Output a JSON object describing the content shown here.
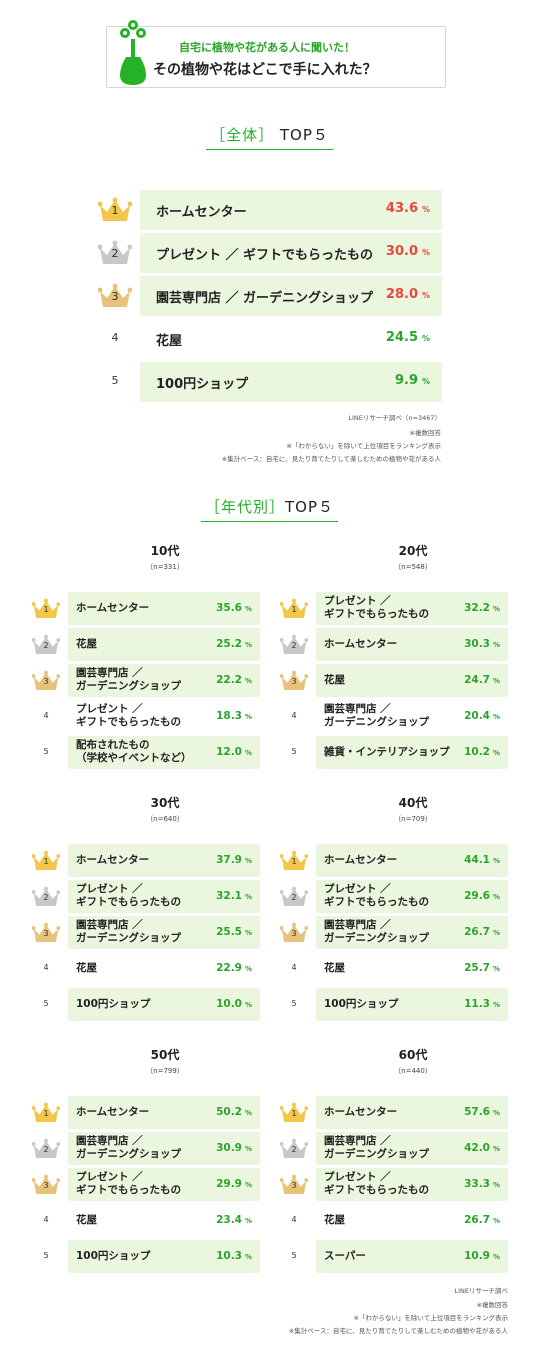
{
  "header": {
    "line1": "自宅に植物や花がある人に聞いた！",
    "line2": "その植物や花はどこで手に入れた？"
  },
  "overall": {
    "title_pre": "［全体］",
    "title_post": "TOP５",
    "rows": [
      {
        "rank": "1",
        "label": "ホームセンター",
        "value": "43.6",
        "unit": "%"
      },
      {
        "rank": "2",
        "label": "プレゼント ／ ギフトでもらったもの",
        "value": "30.0",
        "unit": "%"
      },
      {
        "rank": "3",
        "label": "園芸専門店 ／ ガーデニングショップ",
        "value": "28.0",
        "unit": "%"
      },
      {
        "rank": "4",
        "label": "花屋",
        "value": "24.5",
        "unit": "%"
      },
      {
        "rank": "5",
        "label": "100円ショップ",
        "value": "9.9",
        "unit": "%"
      }
    ],
    "notes": [
      "LINEリサーチ調べ（n=3467）",
      "※複数回答",
      "※「わからない」を除いて上位項目をランキング表示",
      "※集計ベース：自宅に、見たり育てたりして楽しむための植物や花がある人"
    ]
  },
  "by_age": {
    "title_pre": "［年代別］",
    "title_post": "TOP５",
    "groups": [
      {
        "age": "10代",
        "n": "（n=331）",
        "rows": [
          {
            "rank": "1",
            "lines": [
              "ホームセンター"
            ],
            "value": "35.6",
            "unit": "%"
          },
          {
            "rank": "2",
            "lines": [
              "花屋"
            ],
            "value": "25.2",
            "unit": "%"
          },
          {
            "rank": "3",
            "lines": [
              "園芸専門店 ／",
              "ガーデニングショップ"
            ],
            "value": "22.2",
            "unit": "%"
          },
          {
            "rank": "4",
            "lines": [
              "プレゼント ／",
              "ギフトでもらったもの"
            ],
            "value": "18.3",
            "unit": "%"
          },
          {
            "rank": "5",
            "lines": [
              "配布されたもの",
              "（学校やイベントなど）"
            ],
            "value": "12.0",
            "unit": "%"
          }
        ]
      },
      {
        "age": "20代",
        "n": "（n=548）",
        "rows": [
          {
            "rank": "1",
            "lines": [
              "プレゼント ／",
              "ギフトでもらったもの"
            ],
            "value": "32.2",
            "unit": "%"
          },
          {
            "rank": "2",
            "lines": [
              "ホームセンター"
            ],
            "value": "30.3",
            "unit": "%"
          },
          {
            "rank": "3",
            "lines": [
              "花屋"
            ],
            "value": "24.7",
            "unit": "%"
          },
          {
            "rank": "4",
            "lines": [
              "園芸専門店 ／",
              "ガーデニングショップ"
            ],
            "value": "20.4",
            "unit": "%"
          },
          {
            "rank": "5",
            "lines": [
              "雑貨・インテリアショップ"
            ],
            "value": "10.2",
            "unit": "%"
          }
        ]
      },
      {
        "age": "30代",
        "n": "（n=640）",
        "rows": [
          {
            "rank": "1",
            "lines": [
              "ホームセンター"
            ],
            "value": "37.9",
            "unit": "%"
          },
          {
            "rank": "2",
            "lines": [
              "プレゼント ／",
              "ギフトでもらったもの"
            ],
            "value": "32.1",
            "unit": "%"
          },
          {
            "rank": "3",
            "lines": [
              "園芸専門店 ／",
              "ガーデニングショップ"
            ],
            "value": "25.5",
            "unit": "%"
          },
          {
            "rank": "4",
            "lines": [
              "花屋"
            ],
            "value": "22.9",
            "unit": "%"
          },
          {
            "rank": "5",
            "lines": [
              "100円ショップ"
            ],
            "value": "10.0",
            "unit": "%"
          }
        ]
      },
      {
        "age": "40代",
        "n": "（n=709）",
        "rows": [
          {
            "rank": "1",
            "lines": [
              "ホームセンター"
            ],
            "value": "44.1",
            "unit": "%"
          },
          {
            "rank": "2",
            "lines": [
              "プレゼント ／",
              "ギフトでもらったもの"
            ],
            "value": "29.6",
            "unit": "%"
          },
          {
            "rank": "3",
            "lines": [
              "園芸専門店 ／",
              "ガーデニングショップ"
            ],
            "value": "26.7",
            "unit": "%"
          },
          {
            "rank": "4",
            "lines": [
              "花屋"
            ],
            "value": "25.7",
            "unit": "%"
          },
          {
            "rank": "5",
            "lines": [
              "100円ショップ"
            ],
            "value": "11.3",
            "unit": "%"
          }
        ]
      },
      {
        "age": "50代",
        "n": "（n=799）",
        "rows": [
          {
            "rank": "1",
            "lines": [
              "ホームセンター"
            ],
            "value": "50.2",
            "unit": "%"
          },
          {
            "rank": "2",
            "lines": [
              "園芸専門店 ／",
              "ガーデニングショップ"
            ],
            "value": "30.9",
            "unit": "%"
          },
          {
            "rank": "3",
            "lines": [
              "プレゼント ／",
              "ギフトでもらったもの"
            ],
            "value": "29.9",
            "unit": "%"
          },
          {
            "rank": "4",
            "lines": [
              "花屋"
            ],
            "value": "23.4",
            "unit": "%"
          },
          {
            "rank": "5",
            "lines": [
              "100円ショップ"
            ],
            "value": "10.3",
            "unit": "%"
          }
        ]
      },
      {
        "age": "60代",
        "n": "（n=440）",
        "rows": [
          {
            "rank": "1",
            "lines": [
              "ホームセンター"
            ],
            "value": "57.6",
            "unit": "%"
          },
          {
            "rank": "2",
            "lines": [
              "園芸専門店 ／",
              "ガーデニングショップ"
            ],
            "value": "42.0",
            "unit": "%"
          },
          {
            "rank": "3",
            "lines": [
              "プレゼント ／",
              "ギフトでもらったもの"
            ],
            "value": "33.3",
            "unit": "%"
          },
          {
            "rank": "4",
            "lines": [
              "花屋"
            ],
            "value": "26.7",
            "unit": "%"
          },
          {
            "rank": "5",
            "lines": [
              "スーパー"
            ],
            "value": "10.9",
            "unit": "%"
          }
        ]
      }
    ],
    "notes": [
      "LINEリサーチ調べ",
      "※複数回答",
      "※「わからない」を除いて上位項目をランキング表示",
      "※集計ベース：自宅に、見たり育てたりして楽しむための植物や花がある人"
    ]
  },
  "colors": {
    "accent_green": "#26b226",
    "row_fill": "#eaf6dd",
    "top_value_red": "#e8473d",
    "gold": "#f3c64a",
    "silver": "#c8c8c8",
    "bronze": "#e7c27a"
  },
  "chart_data": [
    {
      "type": "table",
      "title": "［全体］TOP５",
      "categories": [
        "ホームセンター",
        "プレゼント／ギフトでもらったもの",
        "園芸専門店／ガーデニングショップ",
        "花屋",
        "100円ショップ"
      ],
      "values": [
        43.6,
        30.0,
        28.0,
        24.5,
        9.9
      ]
    },
    {
      "type": "table",
      "title": "10代",
      "categories": [
        "ホームセンター",
        "花屋",
        "園芸専門店／ガーデニングショップ",
        "プレゼント／ギフトでもらったもの",
        "配布されたもの（学校やイベントなど）"
      ],
      "values": [
        35.6,
        25.2,
        22.2,
        18.3,
        12.0
      ]
    },
    {
      "type": "table",
      "title": "20代",
      "categories": [
        "プレゼント／ギフトでもらったもの",
        "ホームセンター",
        "花屋",
        "園芸専門店／ガーデニングショップ",
        "雑貨・インテリアショップ"
      ],
      "values": [
        32.2,
        30.3,
        24.7,
        20.4,
        10.2
      ]
    },
    {
      "type": "table",
      "title": "30代",
      "categories": [
        "ホームセンター",
        "プレゼント／ギフトでもらったもの",
        "園芸専門店／ガーデニングショップ",
        "花屋",
        "100円ショップ"
      ],
      "values": [
        37.9,
        32.1,
        25.5,
        22.9,
        10.0
      ]
    },
    {
      "type": "table",
      "title": "40代",
      "categories": [
        "ホームセンター",
        "プレゼント／ギフトでもらったもの",
        "園芸専門店／ガーデニングショップ",
        "花屋",
        "100円ショップ"
      ],
      "values": [
        44.1,
        29.6,
        26.7,
        25.7,
        11.3
      ]
    },
    {
      "type": "table",
      "title": "50代",
      "categories": [
        "ホームセンター",
        "園芸専門店／ガーデニングショップ",
        "プレゼント／ギフトでもらったもの",
        "花屋",
        "100円ショップ"
      ],
      "values": [
        50.2,
        30.9,
        29.9,
        23.4,
        10.3
      ]
    },
    {
      "type": "table",
      "title": "60代",
      "categories": [
        "ホームセンター",
        "園芸専門店／ガーデニングショップ",
        "プレゼント／ギフトでもらったもの",
        "花屋",
        "スーパー"
      ],
      "values": [
        57.6,
        42.0,
        33.3,
        26.7,
        10.9
      ]
    }
  ]
}
